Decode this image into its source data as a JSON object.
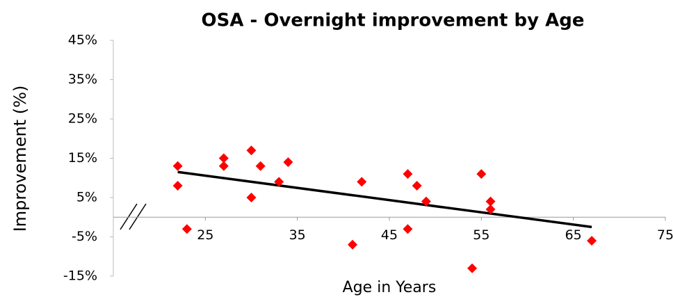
{
  "chart_data": {
    "type": "scatter",
    "title": "OSA - Overnight improvement by Age",
    "xlabel": "Age in Years",
    "ylabel": "Improvement  (%)",
    "x": [
      22,
      22,
      23,
      27,
      27,
      30,
      30,
      31,
      33,
      34,
      41,
      42,
      47,
      47,
      48,
      49,
      54,
      55,
      56,
      56,
      67
    ],
    "values": [
      13,
      8,
      -3,
      15,
      13,
      17,
      5,
      13,
      9,
      14,
      -7,
      9,
      11,
      -3,
      8,
      4,
      -13,
      11,
      4,
      2,
      -6
    ],
    "color": "#ff0000",
    "trendline": {
      "x": [
        22,
        67
      ],
      "values": [
        11.5,
        -2.5
      ],
      "color": "#000000"
    },
    "xlim": [
      15,
      75
    ],
    "xticks": [
      25,
      35,
      45,
      55,
      65,
      75
    ],
    "ylim": [
      -15,
      45
    ],
    "yticks": [
      {
        "value": -15,
        "label": "-15%"
      },
      {
        "value": -5,
        "label": "-5%"
      },
      {
        "value": 5,
        "label": "5%"
      },
      {
        "value": 15,
        "label": "15%"
      },
      {
        "value": 25,
        "label": "25%"
      },
      {
        "value": 35,
        "label": "35%"
      },
      {
        "value": 45,
        "label": "45%"
      }
    ],
    "grid": false
  }
}
